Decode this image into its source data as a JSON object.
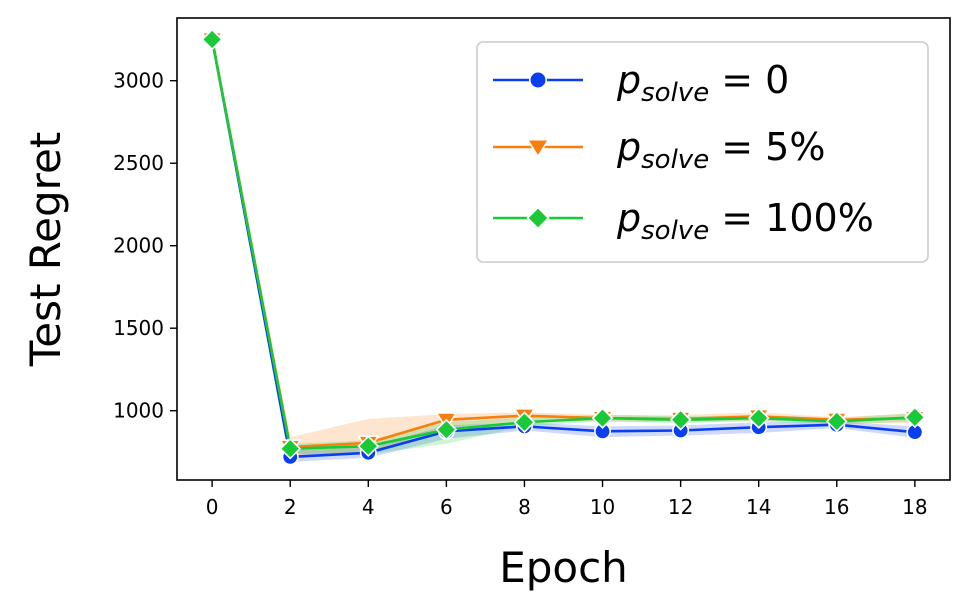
{
  "chart_data": {
    "type": "line",
    "xlabel": "Epoch",
    "ylabel": "Test Regret",
    "xlim": [
      -0.9,
      18.9
    ],
    "ylim": [
      580,
      3380
    ],
    "x_ticks": [
      0,
      2,
      4,
      6,
      8,
      10,
      12,
      14,
      16,
      18
    ],
    "y_ticks": [
      1000,
      1500,
      2000,
      2500,
      3000
    ],
    "x": [
      0,
      2,
      4,
      6,
      8,
      10,
      12,
      14,
      16,
      18
    ],
    "grid": false,
    "legend_position": "top-right",
    "series": [
      {
        "name": "p_solve = 0",
        "legend_var": "p",
        "legend_sub": "solve",
        "legend_rest": " = 0",
        "color": "#0a3ff0",
        "marker": "circle",
        "values": [
          3250,
          720,
          745,
          875,
          905,
          875,
          880,
          900,
          915,
          870
        ],
        "band_low": [
          3250,
          690,
          715,
          830,
          880,
          840,
          850,
          865,
          895,
          835
        ],
        "band_high": [
          3250,
          760,
          780,
          910,
          930,
          905,
          910,
          930,
          935,
          905
        ]
      },
      {
        "name": "p_solve = 5%",
        "legend_var": "p",
        "legend_sub": "solve",
        "legend_rest": " = 5%",
        "color": "#f77f0e",
        "marker": "triangle-down",
        "values": [
          3250,
          780,
          805,
          945,
          970,
          955,
          950,
          965,
          945,
          955
        ],
        "band_low": [
          3250,
          730,
          745,
          900,
          940,
          935,
          930,
          940,
          925,
          925
        ],
        "band_high": [
          3250,
          840,
          950,
          980,
          990,
          975,
          975,
          990,
          960,
          985
        ]
      },
      {
        "name": "p_solve = 100%",
        "legend_var": "p",
        "legend_sub": "solve",
        "legend_rest": " = 100%",
        "color": "#1ac938",
        "marker": "diamond",
        "values": [
          3250,
          770,
          785,
          885,
          930,
          955,
          945,
          955,
          935,
          960
        ],
        "band_low": [
          3250,
          740,
          735,
          800,
          905,
          935,
          925,
          935,
          915,
          935
        ],
        "band_high": [
          3250,
          800,
          820,
          930,
          960,
          975,
          965,
          975,
          955,
          985
        ]
      }
    ]
  }
}
